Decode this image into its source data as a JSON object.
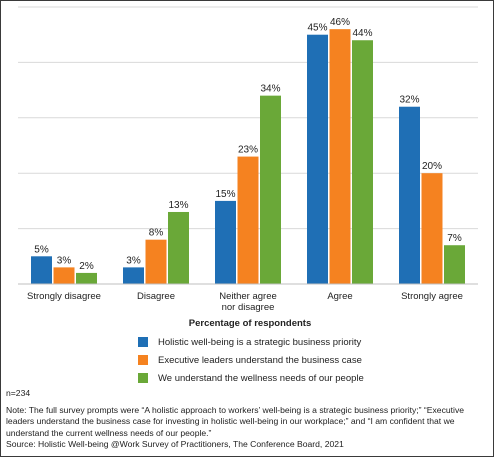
{
  "chart_data": {
    "type": "bar",
    "categories": [
      "Strongly disagree",
      "Disagree",
      "Neither agree|nor disagree",
      "Agree",
      "Strongly agree"
    ],
    "series": [
      {
        "name": "Holistic well-being is a strategic business priority",
        "color": "#1f6fb5",
        "values": [
          5,
          3,
          15,
          45,
          32
        ],
        "labels": [
          "5%",
          "3%",
          "15%",
          "45%",
          "32%"
        ]
      },
      {
        "name": "Executive leaders understand the business case",
        "color": "#f58220",
        "values": [
          3,
          8,
          23,
          46,
          20
        ],
        "labels": [
          "3%",
          "8%",
          "23%",
          "46%",
          "20%"
        ]
      },
      {
        "name": "We understand the wellness needs of our people",
        "color": "#6aa838",
        "values": [
          2,
          13,
          34,
          44,
          7
        ],
        "labels": [
          "2%",
          "13%",
          "34%",
          "44%",
          "7%"
        ]
      }
    ],
    "xlabel": "Percentage of respondents",
    "ylim": [
      0,
      50
    ],
    "grid": true
  },
  "footer": {
    "n": "n=234",
    "note": "Note: The full survey prompts were “A holistic approach to workers’ well-being is a strategic business priority;” “Executive leaders understand the business case for investing in holistic well-being in our workplace;” and “I am confident that we understand the current wellness needs of our people.”",
    "source": "Source: Holistic Well-being @Work Survey of Practitioners, The Conference Board, 2021"
  }
}
